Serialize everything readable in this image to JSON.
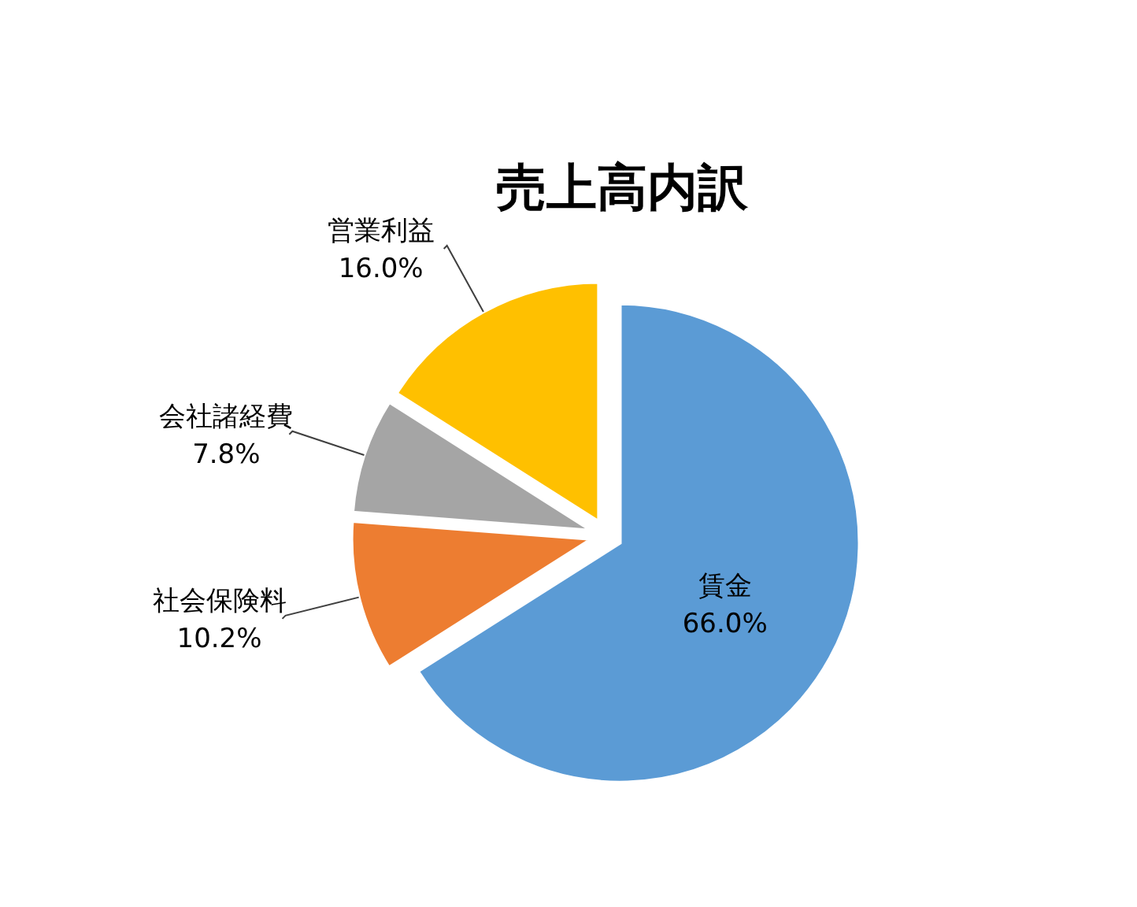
{
  "chart_data": {
    "type": "pie",
    "title": "売上高内訳",
    "categories": [
      "賃金",
      "社会保険料",
      "会社諸経費",
      "営業利益"
    ],
    "values": [
      66.0,
      10.2,
      7.8,
      16.0
    ],
    "value_labels": [
      "66.0%",
      "10.2%",
      "7.8%",
      "16.0%"
    ],
    "colors": [
      "#5b9bd5",
      "#ed7d31",
      "#a5a5a5",
      "#ffc000"
    ]
  }
}
